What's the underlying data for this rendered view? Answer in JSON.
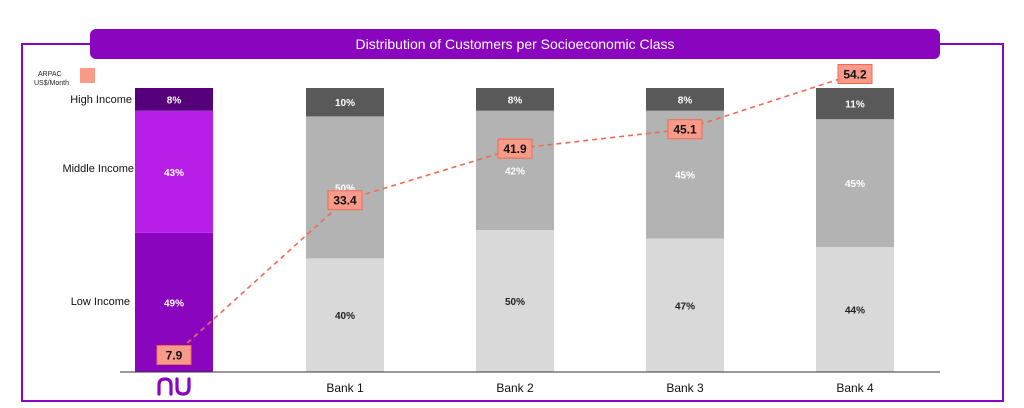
{
  "chart_data": {
    "type": "bar",
    "stacked": true,
    "title": "Distribution of Customers per Socioeconomic Class",
    "categories": [
      "nu",
      "Bank 1",
      "Bank 2",
      "Bank 3",
      "Bank 4"
    ],
    "row_labels": [
      "High Income",
      "Middle Income",
      "Low Income"
    ],
    "series": [
      {
        "name": "Low Income",
        "values": [
          49,
          40,
          50,
          47,
          44
        ]
      },
      {
        "name": "Middle Income",
        "values": [
          43,
          50,
          42,
          45,
          45
        ]
      },
      {
        "name": "High Income",
        "values": [
          8,
          10,
          8,
          8,
          11
        ]
      }
    ],
    "line_series": {
      "name": "ARPAC US$/Month",
      "values": [
        7.9,
        33.4,
        41.9,
        45.1,
        54.2
      ],
      "labels": [
        "7.9",
        "33.4",
        "41.9",
        "45.1",
        "54.2"
      ]
    },
    "legend": {
      "line1": "ARPAC",
      "line2": "US$/Month"
    },
    "ylim": [
      0,
      100
    ]
  },
  "colors": {
    "brand": "#8a05be",
    "nu_low": "#8a05be",
    "nu_mid": "#b71ee8",
    "nu_high": "#55007a",
    "bank_low": "#d9d9d9",
    "bank_mid": "#b3b3b3",
    "bank_high": "#595959",
    "arpac_fill": "#fa9b8a",
    "arpac_stroke": "#f06a55"
  }
}
